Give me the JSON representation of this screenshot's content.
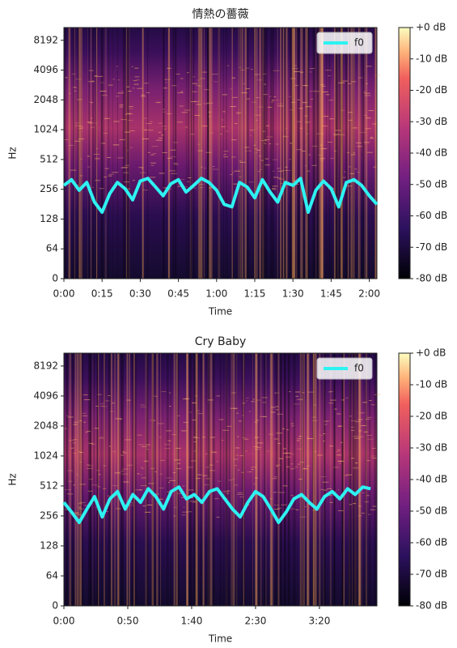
{
  "chart_data": [
    {
      "type": "line",
      "title": "情熱の薔薇",
      "x_label": "Time",
      "y_label": "Hz",
      "x": [
        0,
        3,
        6,
        9,
        12,
        15,
        18,
        21,
        24,
        27,
        30,
        33,
        36,
        39,
        42,
        45,
        48,
        51,
        54,
        57,
        60,
        63,
        66,
        69,
        72,
        75,
        78,
        81,
        84,
        87,
        90,
        93,
        96,
        99,
        102,
        105,
        108,
        111,
        114,
        117,
        120,
        123
      ],
      "series": [
        {
          "name": "f0",
          "color": "#2ef2f2",
          "values": [
            280,
            320,
            250,
            300,
            190,
            150,
            230,
            300,
            260,
            200,
            310,
            330,
            270,
            220,
            290,
            320,
            240,
            280,
            330,
            300,
            250,
            180,
            170,
            300,
            270,
            210,
            320,
            240,
            190,
            300,
            280,
            330,
            150,
            250,
            310,
            260,
            170,
            300,
            320,
            280,
            220,
            180
          ]
        }
      ],
      "xlim": [
        0,
        123
      ],
      "xticks": [
        {
          "value": 0,
          "label": "0:00"
        },
        {
          "value": 15,
          "label": "0:15"
        },
        {
          "value": 30,
          "label": "0:30"
        },
        {
          "value": 45,
          "label": "0:45"
        },
        {
          "value": 60,
          "label": "1:00"
        },
        {
          "value": 75,
          "label": "1:15"
        },
        {
          "value": 90,
          "label": "1:30"
        },
        {
          "value": 105,
          "label": "1:45"
        },
        {
          "value": 120,
          "label": "2:00"
        }
      ],
      "ylim": [
        0,
        11025
      ],
      "yscale": "symlog",
      "linthresh": 64,
      "yticks": [
        0,
        64,
        128,
        256,
        512,
        1024,
        2048,
        4096,
        8192
      ],
      "legend": "upper right",
      "colorbar": {
        "lim": [
          -80,
          0
        ],
        "ticks": [
          {
            "value": 0,
            "label": "+0 dB"
          },
          {
            "value": -10,
            "label": "-10 dB"
          },
          {
            "value": -20,
            "label": "-20 dB"
          },
          {
            "value": -30,
            "label": "-30 dB"
          },
          {
            "value": -40,
            "label": "-40 dB"
          },
          {
            "value": -50,
            "label": "-50 dB"
          },
          {
            "value": -60,
            "label": "-60 dB"
          },
          {
            "value": -70,
            "label": "-70 dB"
          },
          {
            "value": -80,
            "label": "-80 dB"
          }
        ]
      }
    },
    {
      "type": "line",
      "title": "Cry Baby",
      "x_label": "Time",
      "y_label": "Hz",
      "x": [
        0,
        6,
        12,
        18,
        24,
        30,
        36,
        42,
        48,
        54,
        60,
        66,
        72,
        78,
        84,
        90,
        96,
        102,
        108,
        114,
        120,
        126,
        132,
        138,
        144,
        150,
        156,
        162,
        168,
        174,
        180,
        186,
        192,
        198,
        204,
        210,
        216,
        222,
        228,
        234,
        240
      ],
      "series": [
        {
          "name": "f0",
          "color": "#2ef2f2",
          "values": [
            350,
            280,
            220,
            300,
            400,
            250,
            380,
            450,
            300,
            420,
            350,
            480,
            400,
            300,
            450,
            500,
            380,
            420,
            350,
            450,
            480,
            380,
            300,
            250,
            350,
            450,
            400,
            300,
            220,
            280,
            380,
            420,
            350,
            300,
            400,
            450,
            380,
            480,
            420,
            500,
            480
          ]
        }
      ],
      "xlim": [
        0,
        245
      ],
      "xticks": [
        {
          "value": 0,
          "label": "0:00"
        },
        {
          "value": 50,
          "label": "0:50"
        },
        {
          "value": 100,
          "label": "1:40"
        },
        {
          "value": 150,
          "label": "2:30"
        },
        {
          "value": 200,
          "label": "3:20"
        }
      ],
      "ylim": [
        0,
        11025
      ],
      "yscale": "symlog",
      "linthresh": 64,
      "yticks": [
        0,
        64,
        128,
        256,
        512,
        1024,
        2048,
        4096,
        8192
      ],
      "legend": "upper right",
      "colorbar": {
        "lim": [
          -80,
          0
        ],
        "ticks": [
          {
            "value": 0,
            "label": "+0 dB"
          },
          {
            "value": -10,
            "label": "-10 dB"
          },
          {
            "value": -20,
            "label": "-20 dB"
          },
          {
            "value": -30,
            "label": "-30 dB"
          },
          {
            "value": -40,
            "label": "-40 dB"
          },
          {
            "value": -50,
            "label": "-50 dB"
          },
          {
            "value": -60,
            "label": "-60 dB"
          },
          {
            "value": -70,
            "label": "-70 dB"
          },
          {
            "value": -80,
            "label": "-80 dB"
          }
        ]
      }
    }
  ]
}
